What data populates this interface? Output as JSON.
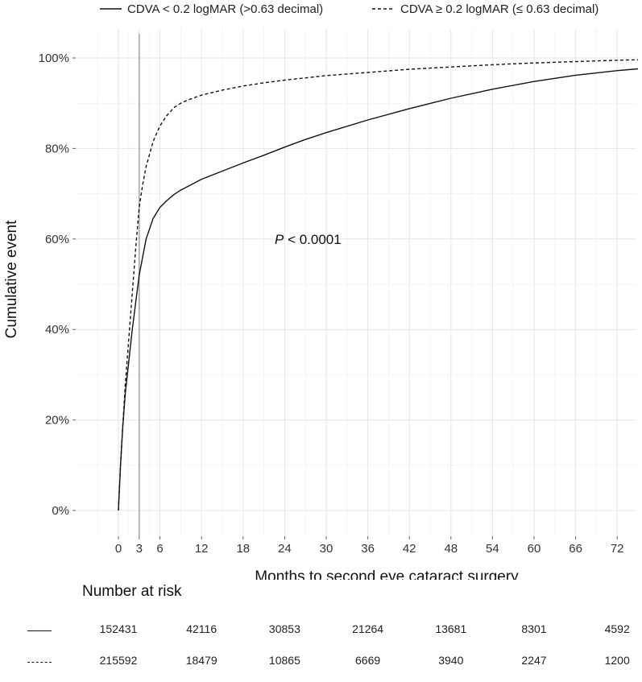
{
  "chart_data": {
    "type": "line",
    "legend": [
      {
        "label": "CDVA < 0.2 logMAR (>0.63 decimal)",
        "style": "solid"
      },
      {
        "label": "CDVA ≥ 0.2 logMAR (≤ 0.63 decimal)",
        "style": "dashed"
      }
    ],
    "xlabel": "Months to second eye cataract surgery",
    "ylabel": "Cumulative event",
    "x_ticks": [
      0,
      3,
      6,
      12,
      18,
      24,
      30,
      36,
      42,
      48,
      54,
      60,
      66,
      72
    ],
    "y_ticks": [
      0,
      20,
      40,
      60,
      80,
      100
    ],
    "y_tick_labels": [
      "0%",
      "20%",
      "40%",
      "60%",
      "80%",
      "100%"
    ],
    "xlim": [
      -6,
      75
    ],
    "ylim": [
      -5,
      103
    ],
    "vertical_reference_line_x": 3,
    "annotation": {
      "italic": "P",
      "rest": " < 0.0001",
      "x": 23,
      "y": 60
    },
    "series": [
      {
        "name": "CDVA < 0.2 logMAR (>0.63 decimal)",
        "style": "solid",
        "x": [
          0,
          0.3,
          0.6,
          1,
          1.5,
          2,
          2.5,
          3,
          3.5,
          4,
          5,
          6,
          7,
          8,
          9,
          10,
          12,
          15,
          18,
          21,
          24,
          27,
          30,
          36,
          42,
          48,
          54,
          60,
          66,
          72,
          75
        ],
        "y": [
          0,
          10,
          18,
          26,
          33,
          40,
          46,
          52,
          56,
          60,
          64.5,
          67,
          68.5,
          69.8,
          70.8,
          71.6,
          73.2,
          75,
          76.8,
          78.5,
          80.3,
          82,
          83.5,
          86.3,
          88.8,
          91.1,
          93.1,
          94.8,
          96.2,
          97.2,
          97.6
        ]
      },
      {
        "name": "CDVA ≥ 0.2 logMAR (≤ 0.63 decimal)",
        "style": "dashed",
        "x": [
          0,
          0.3,
          0.6,
          1,
          1.5,
          2,
          2.5,
          3,
          3.5,
          4,
          5,
          6,
          7,
          8,
          9,
          10,
          12,
          15,
          18,
          21,
          24,
          30,
          36,
          42,
          48,
          54,
          60,
          66,
          72,
          75
        ],
        "y": [
          0,
          10,
          18,
          28,
          38,
          48,
          58,
          67,
          72,
          76,
          81.5,
          85,
          87.3,
          89,
          90,
          90.7,
          91.8,
          92.9,
          93.8,
          94.5,
          95.1,
          96.1,
          96.8,
          97.5,
          98,
          98.5,
          98.9,
          99.2,
          99.5,
          99.6
        ]
      }
    ]
  },
  "risk_table": {
    "title": "Number at risk",
    "columns_months": [
      0,
      12,
      24,
      36,
      48,
      60,
      72
    ],
    "rows": [
      {
        "style": "solid",
        "values": [
          "152431",
          "42116",
          "30853",
          "21264",
          "13681",
          "8301",
          "4592"
        ]
      },
      {
        "style": "dashed",
        "values": [
          "215592",
          "18479",
          "10865",
          "6669",
          "3940",
          "2247",
          "1200"
        ]
      }
    ]
  }
}
